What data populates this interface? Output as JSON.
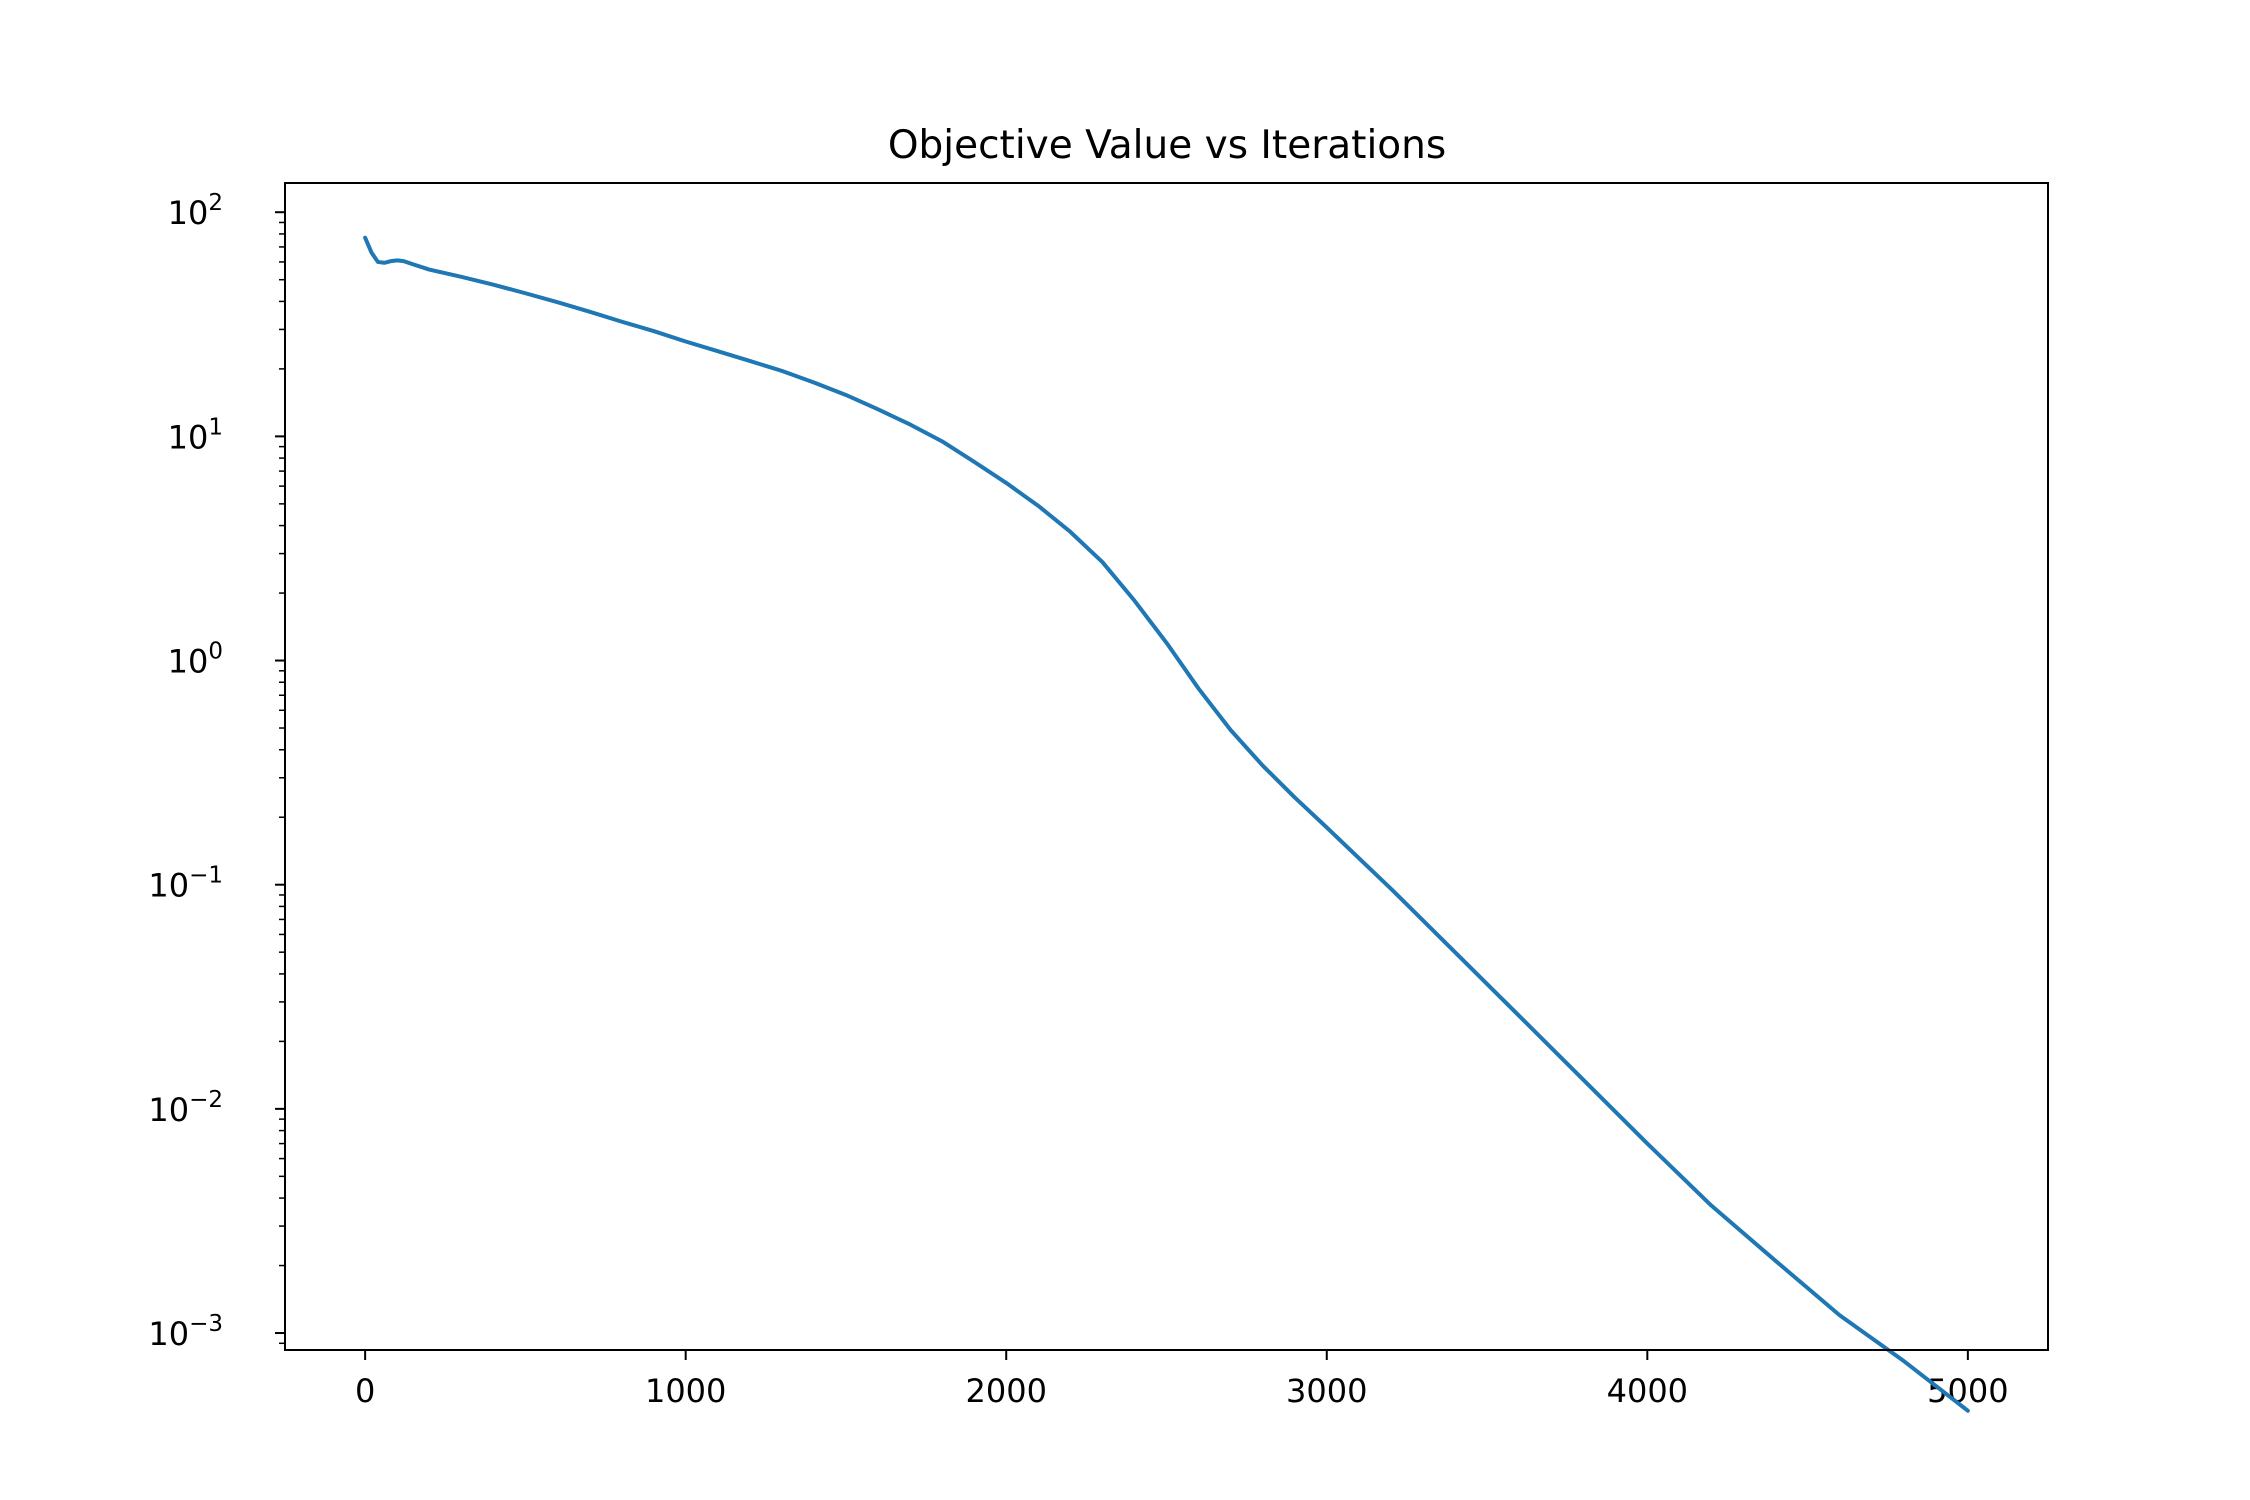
{
  "chart_data": {
    "type": "line",
    "title": "Objective Value vs Iterations",
    "xlabel": "",
    "ylabel": "",
    "xlim": [
      -250,
      5250
    ],
    "ylim": [
      0.00084,
      135
    ],
    "yscale": "log",
    "grid": false,
    "line_color": "#1f77b4",
    "x_ticks": [
      {
        "value": 0,
        "label": "0"
      },
      {
        "value": 1000,
        "label": "1000"
      },
      {
        "value": 2000,
        "label": "2000"
      },
      {
        "value": 3000,
        "label": "3000"
      },
      {
        "value": 4000,
        "label": "4000"
      },
      {
        "value": 5000,
        "label": "5000"
      }
    ],
    "y_ticks": [
      {
        "value": 0.001,
        "base": "10",
        "exp": "−3"
      },
      {
        "value": 0.01,
        "base": "10",
        "exp": "−2"
      },
      {
        "value": 0.1,
        "base": "10",
        "exp": "−1"
      },
      {
        "value": 1,
        "base": "10",
        "exp": "0"
      },
      {
        "value": 10,
        "base": "10",
        "exp": "1"
      },
      {
        "value": 100,
        "base": "10",
        "exp": "2"
      }
    ],
    "series": [
      {
        "x": [
          0,
          20,
          40,
          60,
          80,
          100,
          120,
          150,
          200,
          300,
          400,
          500,
          600,
          700,
          800,
          900,
          1000,
          1100,
          1200,
          1300,
          1400,
          1500,
          1600,
          1700,
          1800,
          1900,
          2000,
          2100,
          2200,
          2300,
          2400,
          2500,
          2600,
          2700,
          2800,
          2900,
          3000,
          3200,
          3400,
          3600,
          3800,
          4000,
          4200,
          4400,
          4600,
          4800,
          5000
        ],
        "y": [
          77,
          66,
          60,
          59.5,
          60.5,
          61,
          60.5,
          58.5,
          55.5,
          51.5,
          47.5,
          43.5,
          39.7,
          36,
          32.5,
          29.5,
          26.5,
          24,
          21.7,
          19.6,
          17.4,
          15.3,
          13.2,
          11.3,
          9.5,
          7.7,
          6.2,
          4.9,
          3.75,
          2.75,
          1.85,
          1.2,
          0.75,
          0.49,
          0.34,
          0.245,
          0.18,
          0.096,
          0.05,
          0.026,
          0.0135,
          0.007,
          0.0037,
          0.0021,
          0.0012,
          0.00075,
          0.00045
        ]
      }
    ]
  }
}
